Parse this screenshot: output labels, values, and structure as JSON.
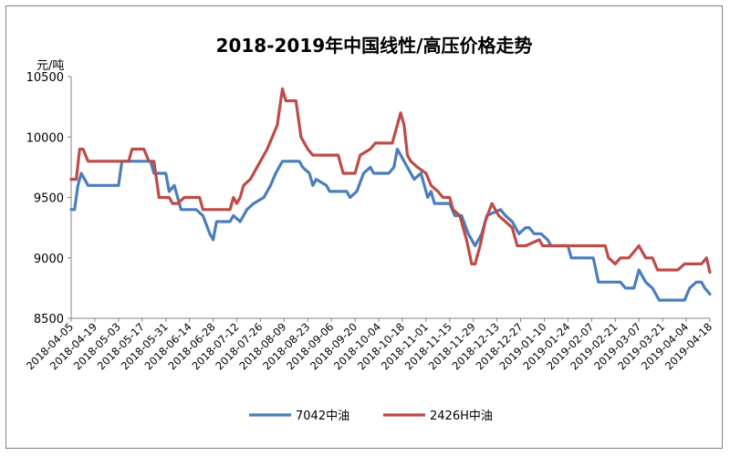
{
  "chart_data": {
    "type": "line",
    "title": "2018-2019年中国线性/高压价格走势",
    "ylabel": "元/吨",
    "ylim": [
      8500,
      10500
    ],
    "yticks": [
      8500,
      9000,
      9500,
      10000,
      10500
    ],
    "grid": false,
    "legend": "bottom",
    "x_range": [
      "2018-04-05",
      "2019-04-18"
    ],
    "categories": [
      "2018-04-05",
      "2018-04-19",
      "2018-05-03",
      "2018-05-17",
      "2018-05-31",
      "2018-06-14",
      "2018-06-28",
      "2018-07-12",
      "2018-07-26",
      "2018-08-09",
      "2018-08-23",
      "2018-09-06",
      "2018-09-20",
      "2018-10-04",
      "2018-10-18",
      "2018-11-01",
      "2018-11-15",
      "2018-11-29",
      "2018-12-13",
      "2018-12-27",
      "2019-01-10",
      "2019-01-24",
      "2019-02-07",
      "2019-02-21",
      "2019-03-07",
      "2019-03-21",
      "2019-04-04",
      "2019-04-18"
    ],
    "series": [
      {
        "name": "7042中油",
        "color": "#4a7ebb",
        "points": [
          [
            "2018-04-05",
            9400
          ],
          [
            "2018-04-07",
            9400
          ],
          [
            "2018-04-09",
            9600
          ],
          [
            "2018-04-11",
            9700
          ],
          [
            "2018-04-13",
            9650
          ],
          [
            "2018-04-15",
            9600
          ],
          [
            "2018-04-24",
            9600
          ],
          [
            "2018-05-03",
            9600
          ],
          [
            "2018-05-05",
            9800
          ],
          [
            "2018-05-14",
            9800
          ],
          [
            "2018-05-16",
            9800
          ],
          [
            "2018-05-22",
            9800
          ],
          [
            "2018-05-24",
            9700
          ],
          [
            "2018-05-31",
            9700
          ],
          [
            "2018-06-02",
            9550
          ],
          [
            "2018-06-05",
            9600
          ],
          [
            "2018-06-07",
            9500
          ],
          [
            "2018-06-09",
            9400
          ],
          [
            "2018-06-18",
            9400
          ],
          [
            "2018-06-22",
            9350
          ],
          [
            "2018-06-26",
            9200
          ],
          [
            "2018-06-28",
            9150
          ],
          [
            "2018-06-30",
            9300
          ],
          [
            "2018-07-08",
            9300
          ],
          [
            "2018-07-10",
            9350
          ],
          [
            "2018-07-14",
            9300
          ],
          [
            "2018-07-18",
            9400
          ],
          [
            "2018-07-22",
            9450
          ],
          [
            "2018-07-28",
            9500
          ],
          [
            "2018-08-01",
            9600
          ],
          [
            "2018-08-04",
            9700
          ],
          [
            "2018-08-08",
            9800
          ],
          [
            "2018-08-18",
            9800
          ],
          [
            "2018-08-20",
            9750
          ],
          [
            "2018-08-24",
            9700
          ],
          [
            "2018-08-26",
            9600
          ],
          [
            "2018-08-28",
            9650
          ],
          [
            "2018-09-03",
            9600
          ],
          [
            "2018-09-05",
            9550
          ],
          [
            "2018-09-15",
            9550
          ],
          [
            "2018-09-17",
            9500
          ],
          [
            "2018-09-21",
            9550
          ],
          [
            "2018-09-25",
            9700
          ],
          [
            "2018-09-29",
            9750
          ],
          [
            "2018-10-01",
            9700
          ],
          [
            "2018-10-10",
            9700
          ],
          [
            "2018-10-13",
            9750
          ],
          [
            "2018-10-15",
            9900
          ],
          [
            "2018-10-21",
            9750
          ],
          [
            "2018-10-25",
            9650
          ],
          [
            "2018-10-29",
            9700
          ],
          [
            "2018-11-02",
            9500
          ],
          [
            "2018-11-04",
            9550
          ],
          [
            "2018-11-06",
            9450
          ],
          [
            "2018-11-15",
            9450
          ],
          [
            "2018-11-18",
            9350
          ],
          [
            "2018-11-22",
            9350
          ],
          [
            "2018-11-26",
            9200
          ],
          [
            "2018-11-30",
            9100
          ],
          [
            "2018-12-04",
            9200
          ],
          [
            "2018-12-07",
            9350
          ],
          [
            "2018-12-15",
            9400
          ],
          [
            "2018-12-18",
            9350
          ],
          [
            "2018-12-22",
            9300
          ],
          [
            "2018-12-26",
            9200
          ],
          [
            "2018-12-30",
            9250
          ],
          [
            "2019-01-01",
            9250
          ],
          [
            "2019-01-04",
            9200
          ],
          [
            "2019-01-08",
            9200
          ],
          [
            "2019-01-12",
            9150
          ],
          [
            "2019-01-14",
            9100
          ],
          [
            "2019-01-24",
            9100
          ],
          [
            "2019-01-26",
            9000
          ],
          [
            "2019-02-01",
            9000
          ],
          [
            "2019-02-08",
            9000
          ],
          [
            "2019-02-11",
            8800
          ],
          [
            "2019-02-24",
            8800
          ],
          [
            "2019-02-27",
            8750
          ],
          [
            "2019-03-04",
            8750
          ],
          [
            "2019-03-07",
            8900
          ],
          [
            "2019-03-11",
            8800
          ],
          [
            "2019-03-15",
            8750
          ],
          [
            "2019-03-19",
            8650
          ],
          [
            "2019-03-23",
            8650
          ],
          [
            "2019-04-03",
            8650
          ],
          [
            "2019-04-06",
            8750
          ],
          [
            "2019-04-10",
            8800
          ],
          [
            "2019-04-13",
            8800
          ],
          [
            "2019-04-15",
            8750
          ],
          [
            "2019-04-18",
            8700
          ]
        ]
      },
      {
        "name": "2426H中油",
        "color": "#be4b48",
        "points": [
          [
            "2018-04-05",
            9650
          ],
          [
            "2018-04-08",
            9650
          ],
          [
            "2018-04-10",
            9900
          ],
          [
            "2018-04-12",
            9900
          ],
          [
            "2018-04-15",
            9800
          ],
          [
            "2018-05-09",
            9800
          ],
          [
            "2018-05-11",
            9900
          ],
          [
            "2018-05-18",
            9900
          ],
          [
            "2018-05-21",
            9800
          ],
          [
            "2018-05-24",
            9800
          ],
          [
            "2018-05-27",
            9500
          ],
          [
            "2018-06-02",
            9500
          ],
          [
            "2018-06-04",
            9450
          ],
          [
            "2018-06-07",
            9450
          ],
          [
            "2018-06-11",
            9500
          ],
          [
            "2018-06-20",
            9500
          ],
          [
            "2018-06-22",
            9400
          ],
          [
            "2018-07-02",
            9400
          ],
          [
            "2018-07-08",
            9400
          ],
          [
            "2018-07-10",
            9500
          ],
          [
            "2018-07-12",
            9450
          ],
          [
            "2018-07-14",
            9500
          ],
          [
            "2018-07-16",
            9600
          ],
          [
            "2018-07-20",
            9650
          ],
          [
            "2018-07-22",
            9700
          ],
          [
            "2018-07-26",
            9800
          ],
          [
            "2018-07-30",
            9900
          ],
          [
            "2018-08-02",
            10000
          ],
          [
            "2018-08-05",
            10100
          ],
          [
            "2018-08-08",
            10400
          ],
          [
            "2018-08-10",
            10300
          ],
          [
            "2018-08-16",
            10300
          ],
          [
            "2018-08-19",
            10000
          ],
          [
            "2018-08-23",
            9900
          ],
          [
            "2018-08-26",
            9850
          ],
          [
            "2018-09-10",
            9850
          ],
          [
            "2018-09-13",
            9700
          ],
          [
            "2018-09-20",
            9700
          ],
          [
            "2018-09-23",
            9850
          ],
          [
            "2018-09-29",
            9900
          ],
          [
            "2018-10-02",
            9950
          ],
          [
            "2018-10-12",
            9950
          ],
          [
            "2018-10-15",
            10100
          ],
          [
            "2018-10-17",
            10200
          ],
          [
            "2018-10-19",
            10100
          ],
          [
            "2018-10-21",
            9850
          ],
          [
            "2018-10-23",
            9800
          ],
          [
            "2018-10-27",
            9750
          ],
          [
            "2018-11-01",
            9700
          ],
          [
            "2018-11-04",
            9600
          ],
          [
            "2018-11-08",
            9550
          ],
          [
            "2018-11-11",
            9500
          ],
          [
            "2018-11-15",
            9500
          ],
          [
            "2018-11-17",
            9400
          ],
          [
            "2018-11-21",
            9350
          ],
          [
            "2018-11-25",
            9150
          ],
          [
            "2018-11-28",
            8950
          ],
          [
            "2018-11-30",
            8950
          ],
          [
            "2018-12-03",
            9100
          ],
          [
            "2018-12-06",
            9300
          ],
          [
            "2018-12-10",
            9450
          ],
          [
            "2018-12-14",
            9350
          ],
          [
            "2018-12-18",
            9300
          ],
          [
            "2018-12-22",
            9250
          ],
          [
            "2018-12-25",
            9100
          ],
          [
            "2018-12-30",
            9100
          ],
          [
            "2019-01-07",
            9150
          ],
          [
            "2019-01-09",
            9100
          ],
          [
            "2019-02-15",
            9100
          ],
          [
            "2019-02-17",
            9000
          ],
          [
            "2019-02-21",
            8950
          ],
          [
            "2019-02-24",
            9000
          ],
          [
            "2019-03-01",
            9000
          ],
          [
            "2019-03-04",
            9050
          ],
          [
            "2019-03-07",
            9100
          ],
          [
            "2019-03-11",
            9000
          ],
          [
            "2019-03-15",
            9000
          ],
          [
            "2019-03-18",
            8900
          ],
          [
            "2019-03-30",
            8900
          ],
          [
            "2019-04-03",
            8950
          ],
          [
            "2019-04-13",
            8950
          ],
          [
            "2019-04-16",
            9000
          ],
          [
            "2019-04-18",
            8880
          ]
        ]
      }
    ]
  }
}
